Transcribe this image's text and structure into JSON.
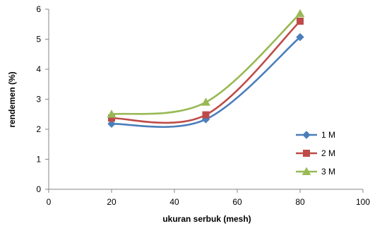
{
  "chart_data": {
    "type": "line",
    "title": "",
    "xlabel": "ukuran serbuk (mesh)",
    "ylabel": "rendemen (%)",
    "xlim": [
      0,
      100
    ],
    "ylim": [
      0,
      6
    ],
    "xticks": [
      0,
      20,
      40,
      60,
      80,
      100
    ],
    "yticks": [
      0,
      1,
      2,
      3,
      4,
      5,
      6
    ],
    "grid": false,
    "smooth": true,
    "legend_position": "right",
    "x": [
      20,
      50,
      80
    ],
    "series": [
      {
        "name": "1 M",
        "values": [
          2.18,
          2.33,
          5.07
        ],
        "color": "#4a7ebb",
        "marker": "diamond"
      },
      {
        "name": "2 M",
        "values": [
          2.37,
          2.48,
          5.6
        ],
        "color": "#be4b48",
        "marker": "square"
      },
      {
        "name": "3 M",
        "values": [
          2.5,
          2.9,
          5.85
        ],
        "color": "#98b954",
        "marker": "triangle"
      }
    ]
  }
}
